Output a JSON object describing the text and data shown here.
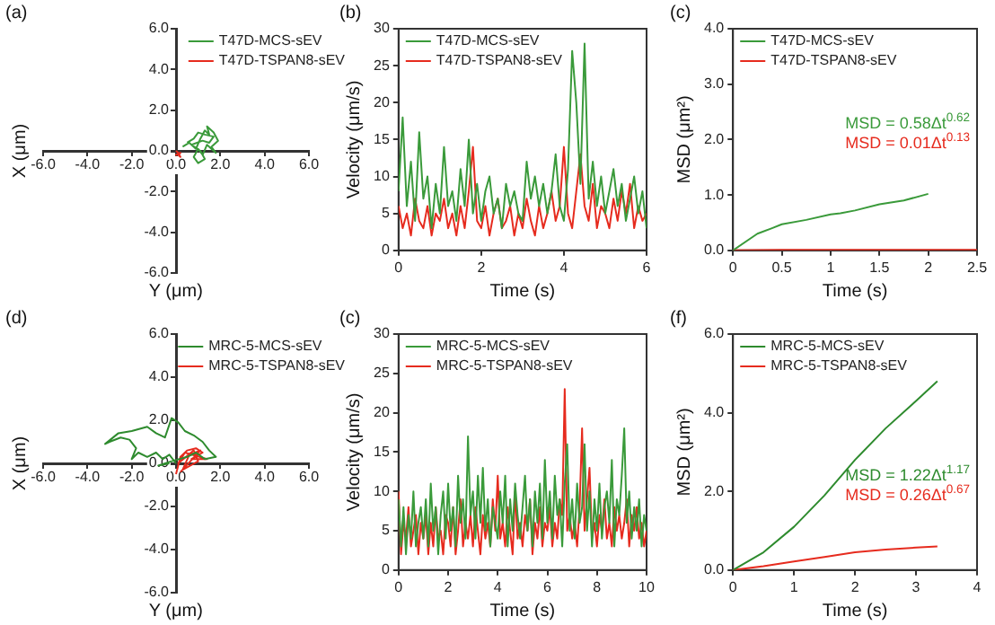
{
  "chart_data": [
    {
      "type": "line",
      "title": "(a)",
      "xlabel": "Y (μm)",
      "ylabel": "X (μm)",
      "xlim": [
        -6,
        6
      ],
      "ylim": [
        -6,
        6
      ],
      "legend": "top right",
      "xticks": [
        {
          "value": -6,
          "label": "-6.0"
        },
        {
          "value": -4,
          "label": "-4.0"
        },
        {
          "value": -2,
          "label": "-2.0"
        },
        {
          "value": 0,
          "label": "0.0"
        },
        {
          "value": 2,
          "label": "2.0"
        },
        {
          "value": 4,
          "label": "4.0"
        },
        {
          "value": 6,
          "label": "6.0"
        }
      ],
      "yticks": [
        {
          "value": -6,
          "label": "-6.0"
        },
        {
          "value": -4,
          "label": "-4.0"
        },
        {
          "value": -2,
          "label": "-2.0"
        },
        {
          "value": 0,
          "label": "0.0"
        },
        {
          "value": 2,
          "label": "2.0"
        },
        {
          "value": 4,
          "label": "4.0"
        },
        {
          "value": 6,
          "label": "6.0"
        }
      ],
      "series": [
        {
          "name": "T47D-MCS-sEV",
          "color": "#3a9a3a",
          "x": [
            0.3,
            0.6,
            0.9,
            1.1,
            1.3,
            1.5,
            1.4,
            1.7,
            1.9,
            1.6,
            1.8,
            1.4,
            1.2,
            1.0,
            0.8,
            1.0,
            1.3,
            1.1,
            0.7,
            1.2,
            1.5,
            1.7,
            1.3,
            1.0,
            0.8,
            0.5
          ],
          "values": [
            0.2,
            0.4,
            0.1,
            0.6,
            1.0,
            0.8,
            1.2,
            0.9,
            0.5,
            0.2,
            -0.1,
            0.3,
            -0.2,
            0.1,
            -0.3,
            -0.6,
            -0.4,
            0.0,
            0.3,
            0.5,
            0.4,
            0.7,
            0.8,
            0.9,
            0.6,
            0.4
          ]
        },
        {
          "name": "T47D-TSPAN8-sEV",
          "color": "#e62b1e",
          "x": [
            0,
            0.1,
            0.2,
            0.1,
            0.2,
            0.0,
            0.2
          ],
          "values": [
            0,
            -0.1,
            -0.3,
            -0.2,
            -0.1,
            -0.2,
            -0.1
          ]
        }
      ]
    },
    {
      "type": "line",
      "title": "(b)",
      "xlabel": "Time (s)",
      "ylabel": "Velocity (μm/s)",
      "xlim": [
        0,
        6
      ],
      "ylim": [
        0,
        30
      ],
      "xticks": [
        0,
        2,
        4,
        6
      ],
      "yticks": [
        0,
        5,
        10,
        15,
        20,
        25,
        30
      ],
      "legend": "top left",
      "x": [
        0,
        0.1,
        0.2,
        0.3,
        0.4,
        0.5,
        0.6,
        0.7,
        0.8,
        0.9,
        1,
        1.1,
        1.2,
        1.3,
        1.4,
        1.5,
        1.6,
        1.7,
        1.8,
        1.9,
        2,
        2.1,
        2.2,
        2.3,
        2.4,
        2.5,
        2.6,
        2.7,
        2.8,
        2.9,
        3,
        3.1,
        3.2,
        3.3,
        3.4,
        3.5,
        3.6,
        3.7,
        3.8,
        3.9,
        4,
        4.1,
        4.2,
        4.3,
        4.4,
        4.5,
        4.6,
        4.7,
        4.8,
        4.9,
        5,
        5.1,
        5.2,
        5.3,
        5.4,
        5.5,
        5.6,
        5.7,
        5.8,
        5.9,
        6
      ],
      "series": [
        {
          "name": "T47D-MCS-sEV",
          "color": "#3a9a3a",
          "values": [
            8,
            18,
            6,
            12,
            4,
            16,
            7,
            10,
            3,
            9,
            5,
            14,
            6,
            8,
            4,
            11,
            6,
            15,
            5,
            9,
            4,
            8,
            10,
            5,
            7,
            3,
            9,
            6,
            8,
            5,
            4,
            12,
            7,
            10,
            6,
            9,
            5,
            8,
            13,
            6,
            4,
            11,
            27,
            20,
            9,
            28,
            7,
            12,
            6,
            10,
            5,
            8,
            11,
            6,
            9,
            4,
            7,
            10,
            5,
            8,
            3
          ]
        },
        {
          "name": "T47D-TSPAN8-sEV",
          "color": "#e62b1e",
          "values": [
            6,
            3,
            5,
            2,
            7,
            4,
            3,
            6,
            2,
            5,
            4,
            7,
            3,
            5,
            2,
            6,
            3,
            8,
            14,
            4,
            3,
            6,
            2,
            5,
            7,
            3,
            4,
            6,
            2,
            5,
            3,
            7,
            4,
            2,
            6,
            3,
            5,
            8,
            4,
            6,
            14,
            5,
            3,
            8,
            13,
            6,
            4,
            9,
            3,
            6,
            5,
            3,
            7,
            4,
            8,
            5,
            9,
            3,
            6,
            4,
            5
          ]
        }
      ]
    },
    {
      "type": "line",
      "title": "(c)",
      "xlabel": "Time (s)",
      "ylabel": "MSD (μm²)",
      "xlim": [
        0,
        2.5
      ],
      "ylim": [
        0,
        4
      ],
      "xticks": [
        0,
        0.5,
        1,
        1.5,
        2,
        2.5
      ],
      "yticks": [
        {
          "value": 0,
          "label": "0.0"
        },
        {
          "value": 1,
          "label": "1.0"
        },
        {
          "value": 2,
          "label": "2.0"
        },
        {
          "value": 3,
          "label": "3.0"
        },
        {
          "value": 4,
          "label": "4.0"
        }
      ],
      "legend": "top left",
      "annotations": [
        "MSD = 0.58Δt$^{0.62}$",
        "MSD = 0.01Δt$^{0.13}$"
      ],
      "series": [
        {
          "name": "T47D-MCS-sEV",
          "color": "#3a9a3a",
          "x": [
            0,
            0.25,
            0.4,
            0.5,
            0.75,
            1.0,
            1.1,
            1.25,
            1.5,
            1.75,
            2.0
          ],
          "values": [
            0,
            0.3,
            0.4,
            0.47,
            0.55,
            0.65,
            0.67,
            0.72,
            0.83,
            0.9,
            1.02
          ]
        },
        {
          "name": "T47D-TSPAN8-sEV",
          "color": "#e62b1e",
          "x": [
            0,
            0.5,
            1,
            1.5,
            2,
            2.5
          ],
          "values": [
            0,
            0.01,
            0.01,
            0.01,
            0.01,
            0.01
          ]
        }
      ]
    },
    {
      "type": "line",
      "title": "(d)",
      "xlabel": "Y (μm)",
      "ylabel": "X (μm)",
      "xlim": [
        -6,
        6
      ],
      "ylim": [
        -6,
        6
      ],
      "legend": "top right",
      "xticks": [
        {
          "value": -6,
          "label": "-6.0"
        },
        {
          "value": -4,
          "label": "-4.0"
        },
        {
          "value": -2,
          "label": "-2.0"
        },
        {
          "value": 0,
          "label": "0.0"
        },
        {
          "value": 2,
          "label": "2.0"
        },
        {
          "value": 4,
          "label": "4.0"
        },
        {
          "value": 6,
          "label": "6.0"
        }
      ],
      "yticks": [
        {
          "value": -6,
          "label": "-6.0"
        },
        {
          "value": -4,
          "label": "-4.0"
        },
        {
          "value": -2,
          "label": "-2.0"
        },
        {
          "value": 0,
          "label": "0.0"
        },
        {
          "value": 2,
          "label": "2.0"
        },
        {
          "value": 4,
          "label": "4.0"
        },
        {
          "value": 6,
          "label": "6.0"
        }
      ],
      "series": [
        {
          "name": "MRC-5-MCS-sEV",
          "color": "#2e8b2e",
          "x": [
            0,
            -0.3,
            -0.6,
            -0.9,
            -1.3,
            -1.7,
            -2.0,
            -1.8,
            -2.1,
            -2.5,
            -3.0,
            -3.2,
            -2.6,
            -2.0,
            -1.3,
            -0.9,
            -0.5,
            -0.2,
            0.1,
            0.4,
            0.8,
            1.2,
            1.5,
            1.8,
            1.3,
            0.9,
            0.5,
            -0.2,
            -0.8,
            -0.3
          ],
          "values": [
            0,
            0.4,
            0.2,
            0.5,
            0.3,
            0.5,
            0.2,
            0.7,
            1.1,
            1.2,
            1.0,
            0.9,
            1.4,
            1.5,
            1.7,
            1.4,
            1.2,
            2.1,
            1.9,
            1.5,
            1.3,
            1.0,
            0.6,
            0.3,
            0.2,
            0.5,
            0.3,
            0.1,
            -0.1,
            0
          ]
        },
        {
          "name": "MRC-5-TSPAN8-sEV",
          "color": "#e62b1e",
          "x": [
            0,
            0.2,
            0.5,
            0.9,
            1.2,
            0.7,
            1.4,
            0.4,
            0.1,
            0.8,
            1.0,
            0.3,
            0.6,
            1.1,
            0.2
          ],
          "values": [
            -0.5,
            0.3,
            0.6,
            0.7,
            0.5,
            0.2,
            0.2,
            0.5,
            0.0,
            0.6,
            0.1,
            -0.3,
            0.4,
            0.6,
            -0.4
          ]
        }
      ]
    },
    {
      "type": "line",
      "title": "(c)",
      "xlabel": "Time (s)",
      "ylabel": "Velocity (μm/s)",
      "xlim": [
        0,
        10
      ],
      "ylim": [
        0,
        30
      ],
      "xticks": [
        0,
        2,
        4,
        6,
        8,
        10
      ],
      "yticks": [
        0,
        5,
        10,
        15,
        20,
        25,
        30
      ],
      "legend": "top left",
      "x": [
        0,
        0.1,
        0.2,
        0.3,
        0.4,
        0.5,
        0.6,
        0.7,
        0.8,
        0.9,
        1,
        1.1,
        1.2,
        1.3,
        1.4,
        1.5,
        1.6,
        1.7,
        1.8,
        1.9,
        2,
        2.1,
        2.2,
        2.3,
        2.4,
        2.5,
        2.6,
        2.7,
        2.8,
        2.9,
        3,
        3.1,
        3.2,
        3.3,
        3.4,
        3.5,
        3.6,
        3.7,
        3.8,
        3.9,
        4,
        4.1,
        4.2,
        4.3,
        4.4,
        4.5,
        4.6,
        4.7,
        4.8,
        4.9,
        5,
        5.1,
        5.2,
        5.3,
        5.4,
        5.5,
        5.6,
        5.7,
        5.8,
        5.9,
        6,
        6.1,
        6.2,
        6.3,
        6.4,
        6.5,
        6.6,
        6.7,
        6.8,
        6.9,
        7,
        7.1,
        7.2,
        7.3,
        7.4,
        7.5,
        7.6,
        7.7,
        7.8,
        7.9,
        8,
        8.1,
        8.2,
        8.3,
        8.4,
        8.5,
        8.6,
        8.7,
        8.8,
        8.9,
        9,
        9.1,
        9.2,
        9.3,
        9.4,
        9.5,
        9.6,
        9.7,
        9.8,
        9.9,
        10
      ],
      "series": [
        {
          "name": "MRC-5-MCS-sEV",
          "color": "#3a9a3a",
          "values": [
            9,
            3,
            8,
            2,
            7,
            4,
            10,
            3,
            6,
            8,
            4,
            9,
            3,
            11,
            5,
            8,
            2,
            7,
            10,
            4,
            11,
            5,
            8,
            3,
            12,
            6,
            9,
            4,
            17,
            7,
            10,
            4,
            12,
            6,
            13,
            5,
            9,
            3,
            8,
            6,
            4,
            10,
            6,
            12,
            3,
            9,
            5,
            11,
            7,
            4,
            8,
            12,
            5,
            9,
            3,
            10,
            6,
            11,
            4,
            14,
            6,
            10,
            4,
            12,
            7,
            9,
            3,
            11,
            16,
            5,
            9,
            4,
            11,
            6,
            8,
            16,
            5,
            10,
            3,
            9,
            5,
            11,
            4,
            8,
            10,
            6,
            14,
            3,
            9,
            7,
            12,
            18,
            6,
            10,
            4,
            8,
            5,
            9,
            3,
            7,
            5
          ]
        },
        {
          "name": "MRC-5-TSPAN8-sEV",
          "color": "#e62b1e",
          "values": [
            10,
            2,
            6,
            4,
            8,
            3,
            5,
            7,
            2,
            6,
            4,
            7,
            2,
            6,
            3,
            8,
            4,
            5,
            2,
            7,
            6,
            3,
            8,
            2,
            5,
            9,
            3,
            6,
            4,
            7,
            3,
            8,
            5,
            2,
            7,
            4,
            6,
            3,
            9,
            5,
            12,
            4,
            6,
            3,
            8,
            5,
            2,
            10,
            4,
            6,
            3,
            7,
            5,
            9,
            2,
            6,
            4,
            8,
            3,
            6,
            5,
            8,
            3,
            6,
            4,
            9,
            7,
            23,
            5,
            7,
            4,
            6,
            3,
            8,
            18,
            5,
            9,
            13,
            4,
            6,
            3,
            7,
            5,
            9,
            4,
            6,
            3,
            8,
            5,
            7,
            4,
            6,
            9,
            3,
            7,
            5,
            8,
            4,
            6,
            3,
            5
          ]
        }
      ]
    },
    {
      "type": "line",
      "title": "(f)",
      "xlabel": "Time (s)",
      "ylabel": "MSD (μm²)",
      "xlim": [
        0,
        4
      ],
      "ylim": [
        0,
        6
      ],
      "xticks": [
        0,
        1,
        2,
        3,
        4
      ],
      "yticks": [
        {
          "value": 0,
          "label": "0.0"
        },
        {
          "value": 2,
          "label": "2.0"
        },
        {
          "value": 4,
          "label": "4.0"
        },
        {
          "value": 6,
          "label": "6.0"
        }
      ],
      "legend": "top left",
      "annotations": [
        "MSD = 1.22Δt$^{1.17}$",
        "MSD = 0.26Δt$^{0.67}$"
      ],
      "series": [
        {
          "name": "MRC-5-MCS-sEV",
          "color": "#2e8b2e",
          "x": [
            0,
            0.5,
            1,
            1.5,
            2,
            2.5,
            3,
            3.35
          ],
          "values": [
            0,
            0.45,
            1.1,
            1.9,
            2.8,
            3.6,
            4.3,
            4.8
          ]
        },
        {
          "name": "MRC-5-TSPAN8-sEV",
          "color": "#e62b1e",
          "x": [
            0,
            0.5,
            1,
            1.5,
            2,
            2.5,
            3,
            3.35
          ],
          "values": [
            0,
            0.1,
            0.22,
            0.33,
            0.45,
            0.52,
            0.57,
            0.6
          ]
        }
      ]
    }
  ]
}
